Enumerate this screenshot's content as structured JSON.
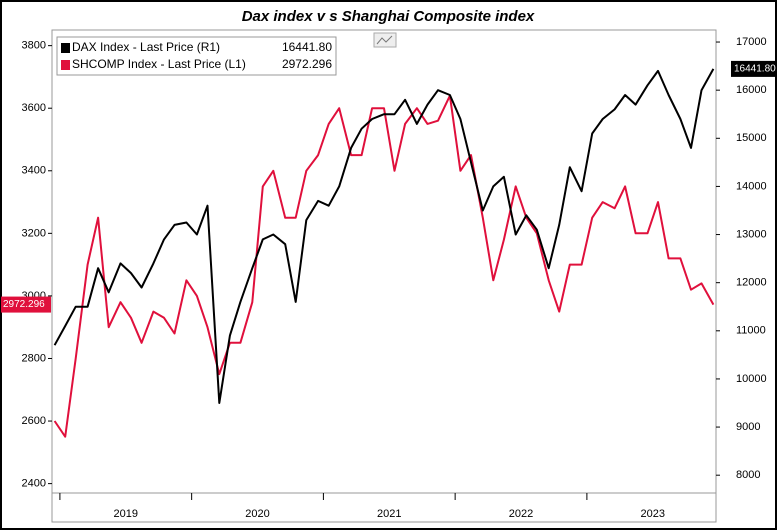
{
  "chart_data": {
    "type": "line",
    "title": "Dax index v s Shanghai Composite index",
    "x": [
      2018.96,
      2019.04,
      2019.12,
      2019.21,
      2019.29,
      2019.37,
      2019.46,
      2019.54,
      2019.62,
      2019.71,
      2019.79,
      2019.87,
      2019.96,
      2020.04,
      2020.12,
      2020.21,
      2020.29,
      2020.37,
      2020.46,
      2020.54,
      2020.62,
      2020.71,
      2020.79,
      2020.87,
      2020.96,
      2021.04,
      2021.12,
      2021.21,
      2021.29,
      2021.37,
      2021.46,
      2021.54,
      2021.62,
      2021.71,
      2021.79,
      2021.87,
      2021.96,
      2022.04,
      2022.12,
      2022.21,
      2022.29,
      2022.37,
      2022.46,
      2022.54,
      2022.62,
      2022.71,
      2022.79,
      2022.87,
      2022.96,
      2023.04,
      2023.12,
      2023.21,
      2023.29,
      2023.37,
      2023.46,
      2023.54,
      2023.62,
      2023.71,
      2023.79,
      2023.87,
      2023.96
    ],
    "xlim": [
      2018.94,
      2023.98
    ],
    "xticks": [
      {
        "value": 2019.5,
        "label": "2019"
      },
      {
        "value": 2020.5,
        "label": "2020"
      },
      {
        "value": 2021.5,
        "label": "2021"
      },
      {
        "value": 2022.5,
        "label": "2022"
      },
      {
        "value": 2023.5,
        "label": "2023"
      }
    ],
    "ylim": [
      2370,
      3850
    ],
    "yticks": [
      2400,
      2600,
      2800,
      3000,
      3200,
      3400,
      3600,
      3800
    ],
    "y2lim": [
      7630,
      17250
    ],
    "y2ticks": [
      8000,
      9000,
      10000,
      11000,
      12000,
      13000,
      14000,
      15000,
      16000,
      17000
    ],
    "series": [
      {
        "name": "DAX Index - Last Price (R1)",
        "color": "#000000",
        "axis": "y2",
        "values": [
          10700,
          11100,
          11500,
          11500,
          12300,
          11800,
          12400,
          12200,
          11900,
          12400,
          12900,
          13200,
          13250,
          13000,
          13600,
          9500,
          10900,
          11600,
          12300,
          12900,
          13000,
          12800,
          11600,
          13300,
          13700,
          13600,
          14000,
          14800,
          15200,
          15400,
          15500,
          15500,
          15800,
          15300,
          15700,
          16000,
          15900,
          15400,
          14500,
          13500,
          14000,
          14200,
          13000,
          13400,
          13100,
          12300,
          13200,
          14400,
          13900,
          15100,
          15400,
          15600,
          15900,
          15700,
          16100,
          16400,
          15900,
          15400,
          14800,
          16000,
          16441.8
        ],
        "value_labels": [
          null,
          null,
          null,
          null,
          null,
          null,
          null,
          null,
          null,
          null,
          null,
          null,
          null,
          null,
          null,
          null,
          null,
          null,
          null,
          null,
          null,
          null,
          null,
          null,
          null,
          null,
          null,
          null,
          null,
          null,
          null,
          null,
          null,
          null,
          null,
          null,
          null,
          null,
          null,
          null,
          null,
          null,
          null,
          null,
          null,
          null,
          null,
          null,
          null,
          null,
          null,
          null,
          null,
          null,
          null,
          null,
          null,
          null,
          null,
          null,
          "16441.80"
        ]
      },
      {
        "name": "SHCOMP Index - Last Price (L1)",
        "color": "#e0103c",
        "values": [
          2600,
          2550,
          2800,
          3100,
          3250,
          2900,
          2980,
          2930,
          2850,
          2950,
          2930,
          2880,
          3050,
          3000,
          2900,
          2750,
          2850,
          2850,
          2980,
          3350,
          3400,
          3250,
          3250,
          3400,
          3450,
          3550,
          3600,
          3450,
          3450,
          3600,
          3600,
          3400,
          3550,
          3600,
          3550,
          3560,
          3640,
          3400,
          3450,
          3250,
          3050,
          3180,
          3350,
          3250,
          3200,
          3050,
          2950,
          3100,
          3100,
          3250,
          3300,
          3280,
          3350,
          3200,
          3200,
          3300,
          3120,
          3120,
          3020,
          3040,
          2972.296
        ]
      }
    ]
  }
}
